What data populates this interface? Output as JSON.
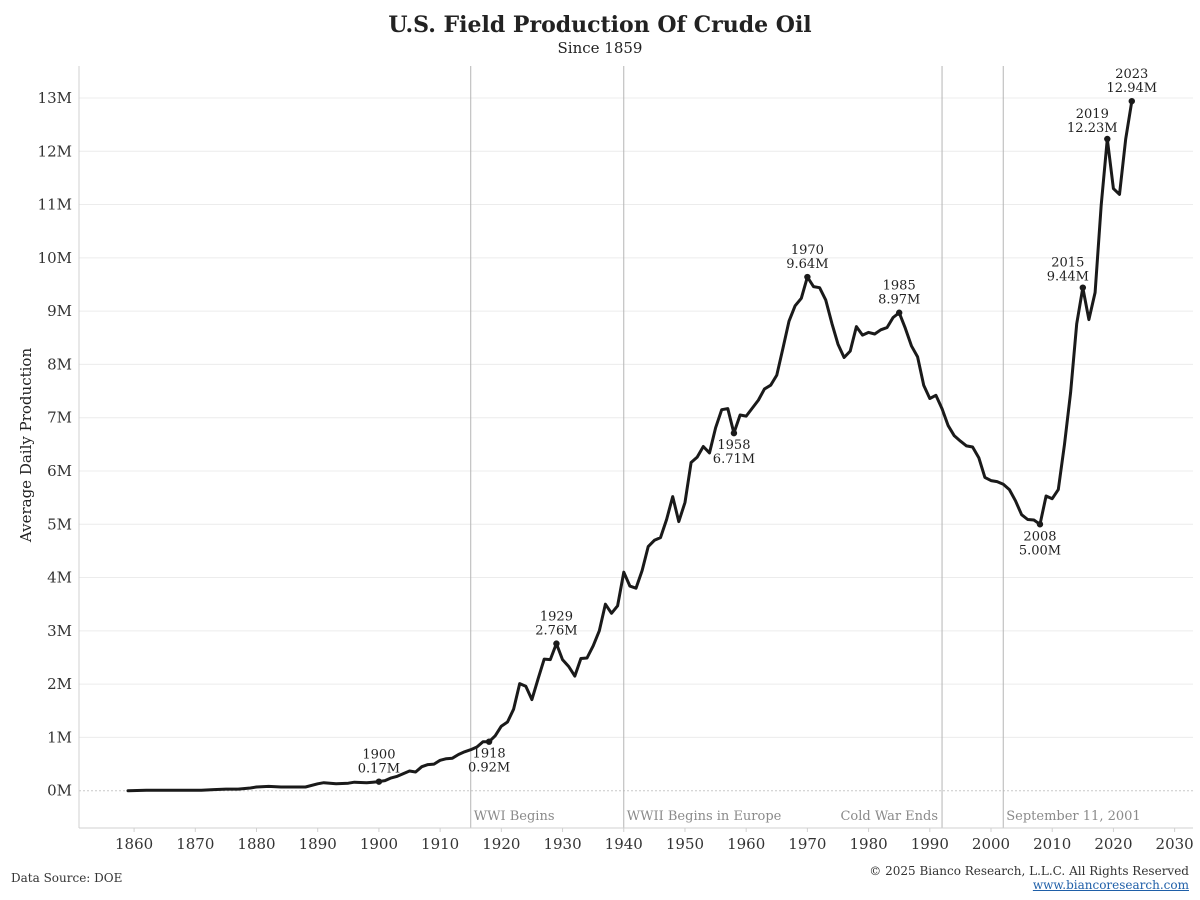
{
  "header": {
    "title": "U.S. Field Production Of Crude Oil",
    "subtitle": "Since 1859"
  },
  "footer": {
    "source": "Data Source: DOE",
    "copyright": "© 2025 Bianco Research, L.L.C. All Rights Reserved",
    "website": "www.biancoresearch.com"
  },
  "chart_data": {
    "type": "line",
    "title": "U.S. Field Production Of Crude Oil",
    "subtitle": "Since 1859",
    "ylabel": "Average Daily Production",
    "xlabel": "",
    "xlim": [
      1851,
      2033
    ],
    "ylim": [
      -0.7,
      13.6
    ],
    "x_ticks": [
      1860,
      1870,
      1880,
      1890,
      1900,
      1910,
      1920,
      1930,
      1940,
      1950,
      1960,
      1970,
      1980,
      1990,
      2000,
      2010,
      2020,
      2030
    ],
    "y_ticks": [
      {
        "value": 0,
        "label": "0M"
      },
      {
        "value": 1,
        "label": "1M"
      },
      {
        "value": 2,
        "label": "2M"
      },
      {
        "value": 3,
        "label": "3M"
      },
      {
        "value": 4,
        "label": "4M"
      },
      {
        "value": 5,
        "label": "5M"
      },
      {
        "value": 6,
        "label": "6M"
      },
      {
        "value": 7,
        "label": "7M"
      },
      {
        "value": 8,
        "label": "8M"
      },
      {
        "value": 9,
        "label": "9M"
      },
      {
        "value": 10,
        "label": "10M"
      },
      {
        "value": 11,
        "label": "11M"
      },
      {
        "value": 12,
        "label": "12M"
      },
      {
        "value": 13,
        "label": "13M"
      }
    ],
    "grid": "horizontal",
    "line_color": "#1a1a1a",
    "event_line_color": "#b5b5b5",
    "events": [
      {
        "year": 1915,
        "label": "WWI Begins",
        "label_side": "right"
      },
      {
        "year": 1940,
        "label": "WWII Begins in Europe",
        "label_side": "right"
      },
      {
        "year": 1992,
        "label": "Cold War Ends",
        "label_side": "left"
      },
      {
        "year": 2002,
        "label": "September 11, 2001",
        "label_side": "right"
      }
    ],
    "annotations": [
      {
        "x": 1900,
        "y": 0.17,
        "year": "1900",
        "value": "0.17M",
        "position": "above"
      },
      {
        "x": 1918,
        "y": 0.92,
        "year": "1918",
        "value": "0.92M",
        "position": "below"
      },
      {
        "x": 1929,
        "y": 2.76,
        "year": "1929",
        "value": "2.76M",
        "position": "above"
      },
      {
        "x": 1958,
        "y": 6.71,
        "year": "1958",
        "value": "6.71M",
        "position": "below"
      },
      {
        "x": 1970,
        "y": 9.64,
        "year": "1970",
        "value": "9.64M",
        "position": "above"
      },
      {
        "x": 1985,
        "y": 8.97,
        "year": "1985",
        "value": "8.97M",
        "position": "above"
      },
      {
        "x": 2008,
        "y": 5.0,
        "year": "2008",
        "value": "5.00M",
        "position": "below"
      },
      {
        "x": 2015,
        "y": 9.44,
        "year": "2015",
        "value": "9.44M",
        "position": "above-left"
      },
      {
        "x": 2019,
        "y": 12.23,
        "year": "2019",
        "value": "12.23M",
        "position": "above-left"
      },
      {
        "x": 2023,
        "y": 12.94,
        "year": "2023",
        "value": "12.94M",
        "position": "above"
      }
    ],
    "series": [
      {
        "values": [
          [
            1859,
            0.0
          ],
          [
            1862,
            0.01
          ],
          [
            1865,
            0.01
          ],
          [
            1868,
            0.01
          ],
          [
            1871,
            0.01
          ],
          [
            1873,
            0.02
          ],
          [
            1875,
            0.03
          ],
          [
            1877,
            0.03
          ],
          [
            1879,
            0.05
          ],
          [
            1880,
            0.07
          ],
          [
            1882,
            0.08
          ],
          [
            1884,
            0.07
          ],
          [
            1886,
            0.07
          ],
          [
            1888,
            0.07
          ],
          [
            1890,
            0.13
          ],
          [
            1891,
            0.15
          ],
          [
            1893,
            0.13
          ],
          [
            1895,
            0.14
          ],
          [
            1896,
            0.16
          ],
          [
            1898,
            0.15
          ],
          [
            1899,
            0.16
          ],
          [
            1900,
            0.17
          ],
          [
            1901,
            0.19
          ],
          [
            1902,
            0.24
          ],
          [
            1903,
            0.27
          ],
          [
            1904,
            0.32
          ],
          [
            1905,
            0.37
          ],
          [
            1906,
            0.35
          ],
          [
            1907,
            0.45
          ],
          [
            1908,
            0.49
          ],
          [
            1909,
            0.5
          ],
          [
            1910,
            0.57
          ],
          [
            1911,
            0.6
          ],
          [
            1912,
            0.61
          ],
          [
            1913,
            0.68
          ],
          [
            1914,
            0.73
          ],
          [
            1915,
            0.77
          ],
          [
            1916,
            0.82
          ],
          [
            1917,
            0.92
          ],
          [
            1918,
            0.92
          ],
          [
            1919,
            1.03
          ],
          [
            1920,
            1.21
          ],
          [
            1921,
            1.29
          ],
          [
            1922,
            1.53
          ],
          [
            1923,
            2.01
          ],
          [
            1924,
            1.96
          ],
          [
            1925,
            1.71
          ],
          [
            1926,
            2.1
          ],
          [
            1927,
            2.47
          ],
          [
            1928,
            2.46
          ],
          [
            1929,
            2.76
          ],
          [
            1930,
            2.46
          ],
          [
            1931,
            2.33
          ],
          [
            1932,
            2.15
          ],
          [
            1933,
            2.48
          ],
          [
            1934,
            2.49
          ],
          [
            1935,
            2.72
          ],
          [
            1936,
            3.0
          ],
          [
            1937,
            3.5
          ],
          [
            1938,
            3.33
          ],
          [
            1939,
            3.47
          ],
          [
            1940,
            4.1
          ],
          [
            1941,
            3.84
          ],
          [
            1942,
            3.8
          ],
          [
            1943,
            4.13
          ],
          [
            1944,
            4.58
          ],
          [
            1945,
            4.7
          ],
          [
            1946,
            4.75
          ],
          [
            1947,
            5.09
          ],
          [
            1948,
            5.52
          ],
          [
            1949,
            5.05
          ],
          [
            1950,
            5.41
          ],
          [
            1951,
            6.16
          ],
          [
            1952,
            6.26
          ],
          [
            1953,
            6.46
          ],
          [
            1954,
            6.34
          ],
          [
            1955,
            6.81
          ],
          [
            1956,
            7.15
          ],
          [
            1957,
            7.17
          ],
          [
            1958,
            6.71
          ],
          [
            1959,
            7.05
          ],
          [
            1960,
            7.03
          ],
          [
            1961,
            7.18
          ],
          [
            1962,
            7.33
          ],
          [
            1963,
            7.54
          ],
          [
            1964,
            7.61
          ],
          [
            1965,
            7.8
          ],
          [
            1966,
            8.3
          ],
          [
            1967,
            8.81
          ],
          [
            1968,
            9.1
          ],
          [
            1969,
            9.24
          ],
          [
            1970,
            9.64
          ],
          [
            1971,
            9.46
          ],
          [
            1972,
            9.44
          ],
          [
            1973,
            9.21
          ],
          [
            1974,
            8.77
          ],
          [
            1975,
            8.38
          ],
          [
            1976,
            8.13
          ],
          [
            1977,
            8.25
          ],
          [
            1978,
            8.71
          ],
          [
            1979,
            8.55
          ],
          [
            1980,
            8.6
          ],
          [
            1981,
            8.57
          ],
          [
            1982,
            8.65
          ],
          [
            1983,
            8.69
          ],
          [
            1984,
            8.88
          ],
          [
            1985,
            8.97
          ],
          [
            1986,
            8.68
          ],
          [
            1987,
            8.35
          ],
          [
            1988,
            8.14
          ],
          [
            1989,
            7.61
          ],
          [
            1990,
            7.36
          ],
          [
            1991,
            7.42
          ],
          [
            1992,
            7.17
          ],
          [
            1993,
            6.85
          ],
          [
            1994,
            6.66
          ],
          [
            1995,
            6.56
          ],
          [
            1996,
            6.47
          ],
          [
            1997,
            6.45
          ],
          [
            1998,
            6.25
          ],
          [
            1999,
            5.88
          ],
          [
            2000,
            5.82
          ],
          [
            2001,
            5.8
          ],
          [
            2002,
            5.75
          ],
          [
            2003,
            5.65
          ],
          [
            2004,
            5.44
          ],
          [
            2005,
            5.18
          ],
          [
            2006,
            5.09
          ],
          [
            2007,
            5.08
          ],
          [
            2008,
            5.0
          ],
          [
            2009,
            5.53
          ],
          [
            2010,
            5.48
          ],
          [
            2011,
            5.65
          ],
          [
            2012,
            6.5
          ],
          [
            2013,
            7.47
          ],
          [
            2014,
            8.76
          ],
          [
            2015,
            9.44
          ],
          [
            2016,
            8.84
          ],
          [
            2017,
            9.35
          ],
          [
            2018,
            10.99
          ],
          [
            2019,
            12.23
          ],
          [
            2020,
            11.3
          ],
          [
            2021,
            11.19
          ],
          [
            2022,
            12.23
          ],
          [
            2023,
            12.94
          ]
        ]
      }
    ]
  }
}
